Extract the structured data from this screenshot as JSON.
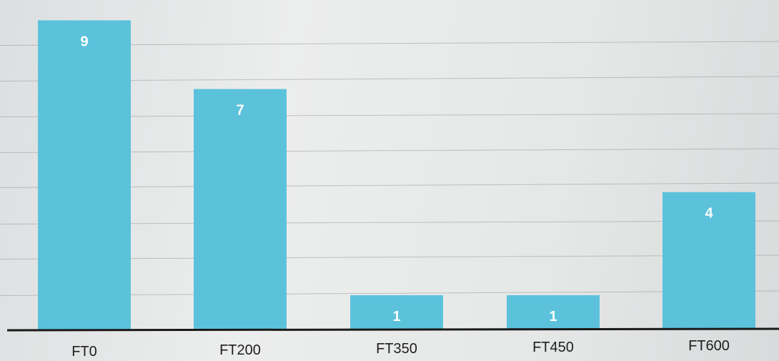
{
  "chart_data": {
    "type": "bar",
    "categories": [
      "FT0",
      "FT200",
      "FT350",
      "FT450",
      "FT600"
    ],
    "values": [
      9,
      7,
      1,
      1,
      4
    ],
    "title": "",
    "xlabel": "",
    "ylabel": "",
    "ylim": [
      0,
      9.3
    ],
    "grid": true,
    "data_labels": true,
    "bar_color": "#5cc2dc",
    "label_color": "#ffffff",
    "axis_color": "#1a1a1a",
    "grid_color": "#9a9a9a"
  }
}
